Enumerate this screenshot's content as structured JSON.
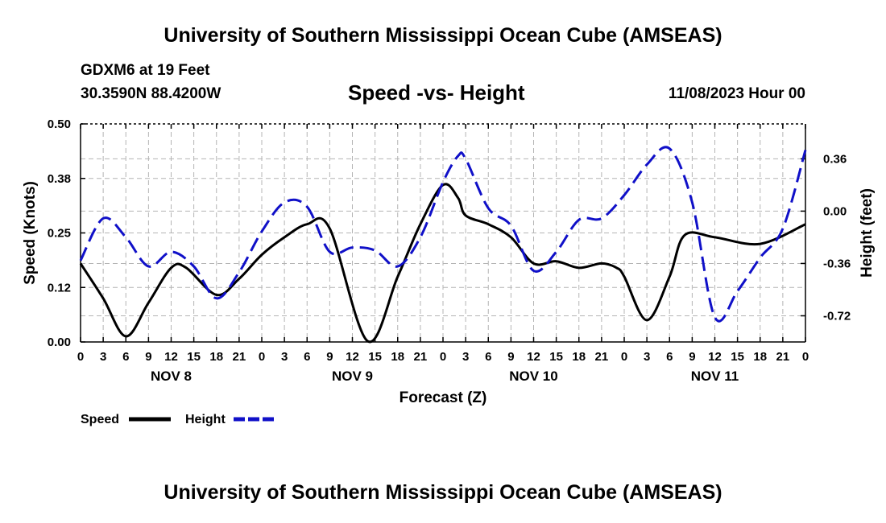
{
  "header": {
    "title": "University of Southern Mississippi Ocean Cube (AMSEAS)",
    "station": "GDXM6 at 19 Feet",
    "coords": "30.3590N  88.4200W",
    "chart_title": "Speed -vs- Height",
    "date": "11/08/2023 Hour 00"
  },
  "footer": {
    "title": "University of Southern Mississippi Ocean Cube (AMSEAS)"
  },
  "chart_data": {
    "type": "line",
    "title": "Speed -vs- Height",
    "xlabel": "Forecast (Z)",
    "ylabel": "Speed (Knots)",
    "y2label": "Height (feet)",
    "x_range": [
      0,
      96
    ],
    "ylim": [
      0,
      0.5
    ],
    "y2lim": [
      -0.9,
      0.6
    ],
    "yticks": [
      0.0,
      0.125,
      0.25,
      0.375,
      0.5
    ],
    "ytick_labels": [
      "0.00",
      "0.12",
      "0.25",
      "0.38",
      "0.50"
    ],
    "y2ticks": [
      0.36,
      0.0,
      -0.36,
      -0.72
    ],
    "y2tick_labels": [
      "0.36",
      "0.00",
      "-0.36",
      "-0.72"
    ],
    "xtick_labels": [
      "0",
      "3",
      "6",
      "9",
      "12",
      "15",
      "18",
      "21",
      "0",
      "3",
      "6",
      "9",
      "12",
      "15",
      "18",
      "21",
      "0",
      "3",
      "6",
      "9",
      "12",
      "15",
      "18",
      "21",
      "0",
      "3",
      "6",
      "9",
      "12",
      "15",
      "18",
      "21",
      "0"
    ],
    "day_labels": [
      {
        "label": "NOV 8",
        "hour": 12
      },
      {
        "label": "NOV 9",
        "hour": 36
      },
      {
        "label": "NOV 10",
        "hour": 60
      },
      {
        "label": "NOV 11",
        "hour": 84
      }
    ],
    "grid": true,
    "legend": [
      {
        "name": "Speed",
        "color": "#000000",
        "style": "solid"
      },
      {
        "name": "Height",
        "color": "#1010c8",
        "style": "dashed"
      }
    ],
    "series": [
      {
        "name": "Speed",
        "axis": "left",
        "color": "#000000",
        "x": [
          0,
          3,
          6,
          9,
          12,
          14,
          18,
          21,
          24,
          27,
          30,
          33,
          38,
          42,
          45,
          48,
          50,
          51,
          54,
          57,
          60,
          63,
          66,
          69,
          71,
          72,
          75,
          78,
          80,
          84,
          90,
          96
        ],
        "y": [
          0.18,
          0.1,
          0.013,
          0.09,
          0.17,
          0.17,
          0.108,
          0.145,
          0.2,
          0.24,
          0.27,
          0.26,
          0.002,
          0.15,
          0.27,
          0.36,
          0.33,
          0.29,
          0.27,
          0.24,
          0.18,
          0.185,
          0.17,
          0.18,
          0.17,
          0.15,
          0.05,
          0.15,
          0.245,
          0.24,
          0.225,
          0.27
        ]
      },
      {
        "name": "Height",
        "axis": "right",
        "color": "#1010c8",
        "x": [
          0,
          3,
          6,
          9,
          12,
          15,
          18,
          21,
          24,
          27,
          30,
          33,
          36,
          39,
          42,
          45,
          48,
          50,
          51,
          54,
          57,
          60,
          63,
          66,
          69,
          72,
          75,
          78,
          81,
          84,
          87,
          90,
          93,
          96
        ],
        "y": [
          -0.34,
          -0.05,
          -0.18,
          -0.38,
          -0.28,
          -0.38,
          -0.6,
          -0.42,
          -0.14,
          0.06,
          0.03,
          -0.28,
          -0.25,
          -0.27,
          -0.38,
          -0.18,
          0.2,
          0.38,
          0.36,
          0.02,
          -0.1,
          -0.41,
          -0.28,
          -0.06,
          -0.05,
          0.11,
          0.32,
          0.43,
          0.06,
          -0.73,
          -0.55,
          -0.32,
          -0.12,
          0.42
        ]
      }
    ]
  }
}
